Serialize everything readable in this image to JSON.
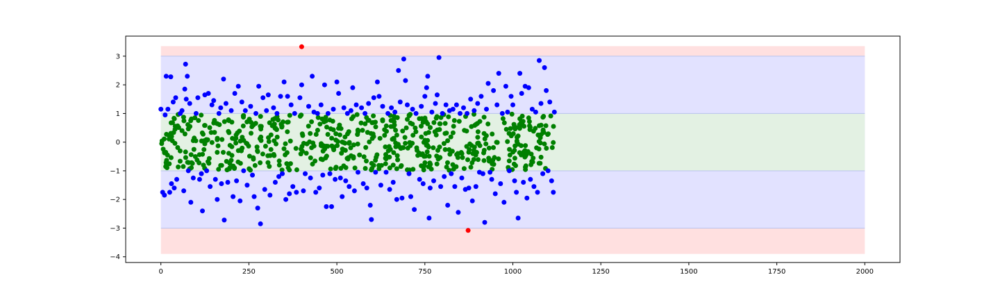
{
  "chart_data": {
    "type": "scatter",
    "title": "",
    "xlabel": "",
    "ylabel": "",
    "xlim": [
      -100,
      2100
    ],
    "ylim": [
      -4.2,
      3.7
    ],
    "x_ticks": [
      0,
      250,
      500,
      750,
      1000,
      1250,
      1500,
      1750,
      2000
    ],
    "y_ticks": [
      3,
      2,
      1,
      0,
      -1,
      -2,
      -3,
      -4
    ],
    "bands": [
      {
        "name": "outer",
        "x_range": [
          0,
          2000
        ],
        "y_range": [
          -3.9,
          3.35
        ],
        "color": "#ffe0e0"
      },
      {
        "name": "middle",
        "x_range": [
          0,
          2000
        ],
        "y_range": [
          -3,
          3
        ],
        "color": "#e2e2ff"
      },
      {
        "name": "inner",
        "x_range": [
          0,
          2000
        ],
        "y_range": [
          -1,
          1
        ],
        "color": "#e3f1e3"
      }
    ],
    "series": [
      {
        "color": "#ff0000",
        "points": [
          [
            400,
            3.33
          ],
          [
            873,
            -3.08
          ]
        ]
      },
      {
        "color": "#0000ff",
        "note_generated": false,
        "points": [
          [
            0,
            1.15
          ],
          [
            5,
            -1.75
          ],
          [
            10,
            -1.85
          ],
          [
            12,
            0.95
          ],
          [
            15,
            2.3
          ],
          [
            20,
            1.15
          ],
          [
            25,
            -1.75
          ],
          [
            28,
            2.28
          ],
          [
            30,
            -1.45
          ],
          [
            35,
            1.4
          ],
          [
            38,
            -1.6
          ],
          [
            42,
            1.55
          ],
          [
            45,
            -1.3
          ],
          [
            55,
            1.0
          ],
          [
            60,
            1.1
          ],
          [
            65,
            -1.7
          ],
          [
            68,
            1.85
          ],
          [
            70,
            2.72
          ],
          [
            72,
            1.5
          ],
          [
            75,
            2.3
          ],
          [
            78,
            -1.0
          ],
          [
            82,
            1.35
          ],
          [
            85,
            -2.1
          ],
          [
            92,
            -1.25
          ],
          [
            100,
            1.0
          ],
          [
            105,
            1.55
          ],
          [
            110,
            -1.3
          ],
          [
            115,
            -1.1
          ],
          [
            118,
            -2.4
          ],
          [
            125,
            1.65
          ],
          [
            130,
            -1.0
          ],
          [
            135,
            1.7
          ],
          [
            140,
            -1.55
          ],
          [
            145,
            1.3
          ],
          [
            150,
            1.45
          ],
          [
            155,
            -1.3
          ],
          [
            160,
            -2.0
          ],
          [
            165,
            1.0
          ],
          [
            170,
            1.2
          ],
          [
            172,
            -1.45
          ],
          [
            178,
            2.2
          ],
          [
            180,
            -2.72
          ],
          [
            185,
            1.35
          ],
          [
            190,
            -1.4
          ],
          [
            200,
            1.1
          ],
          [
            205,
            -1.9
          ],
          [
            210,
            1.7
          ],
          [
            215,
            -1.35
          ],
          [
            220,
            1.95
          ],
          [
            225,
            -2.05
          ],
          [
            230,
            1.4
          ],
          [
            235,
            -1.0
          ],
          [
            240,
            1.1
          ],
          [
            245,
            -1.5
          ],
          [
            255,
            1.25
          ],
          [
            260,
            -1.15
          ],
          [
            265,
            -1.9
          ],
          [
            270,
            1.0
          ],
          [
            275,
            -2.3
          ],
          [
            278,
            1.95
          ],
          [
            283,
            -2.85
          ],
          [
            290,
            1.55
          ],
          [
            295,
            -1.65
          ],
          [
            300,
            1.1
          ],
          [
            305,
            1.65
          ],
          [
            310,
            -1.85
          ],
          [
            320,
            1.2
          ],
          [
            325,
            -1.4
          ],
          [
            330,
            1.0
          ],
          [
            335,
            -1.2
          ],
          [
            340,
            1.6
          ],
          [
            345,
            -1.1
          ],
          [
            350,
            2.1
          ],
          [
            355,
            -2.0
          ],
          [
            360,
            1.6
          ],
          [
            365,
            -1.8
          ],
          [
            370,
            1.3
          ],
          [
            375,
            -1.55
          ],
          [
            380,
            1.0
          ],
          [
            385,
            -1.75
          ],
          [
            395,
            1.55
          ],
          [
            400,
            2.0
          ],
          [
            405,
            -1.7
          ],
          [
            410,
            -1.1
          ],
          [
            420,
            1.25
          ],
          [
            425,
            -1.25
          ],
          [
            430,
            2.3
          ],
          [
            435,
            1.05
          ],
          [
            440,
            -1.75
          ],
          [
            445,
            1.0
          ],
          [
            450,
            -1.6
          ],
          [
            455,
            1.3
          ],
          [
            460,
            -1.15
          ],
          [
            465,
            2.0
          ],
          [
            470,
            -2.25
          ],
          [
            475,
            1.0
          ],
          [
            480,
            -1.1
          ],
          [
            485,
            -2.25
          ],
          [
            490,
            1.15
          ],
          [
            495,
            -1.3
          ],
          [
            500,
            2.1
          ],
          [
            505,
            1.7
          ],
          [
            510,
            -1.25
          ],
          [
            515,
            -1.9
          ],
          [
            520,
            1.2
          ],
          [
            525,
            -1.35
          ],
          [
            530,
            1.0
          ],
          [
            535,
            -1.55
          ],
          [
            540,
            1.1
          ],
          [
            545,
            1.9
          ],
          [
            550,
            -1.7
          ],
          [
            555,
            1.3
          ],
          [
            560,
            -1.05
          ],
          [
            570,
            1.2
          ],
          [
            575,
            -1.45
          ],
          [
            580,
            1.0
          ],
          [
            585,
            -1.6
          ],
          [
            590,
            1.35
          ],
          [
            595,
            -2.2
          ],
          [
            598,
            -2.7
          ],
          [
            605,
            1.55
          ],
          [
            610,
            -1.05
          ],
          [
            615,
            2.1
          ],
          [
            620,
            1.6
          ],
          [
            625,
            -1.5
          ],
          [
            630,
            1.25
          ],
          [
            640,
            -1.05
          ],
          [
            645,
            1.0
          ],
          [
            650,
            -1.65
          ],
          [
            655,
            1.2
          ],
          [
            660,
            -1.4
          ],
          [
            665,
            1.05
          ],
          [
            670,
            -2.0
          ],
          [
            675,
            2.5
          ],
          [
            680,
            1.4
          ],
          [
            685,
            -1.95
          ],
          [
            690,
            2.9
          ],
          [
            695,
            2.15
          ],
          [
            700,
            1.3
          ],
          [
            705,
            -1.1
          ],
          [
            710,
            -1.9
          ],
          [
            715,
            1.15
          ],
          [
            720,
            -2.35
          ],
          [
            725,
            1.0
          ],
          [
            735,
            -1.3
          ],
          [
            740,
            1.25
          ],
          [
            745,
            -1.45
          ],
          [
            750,
            1.6
          ],
          [
            755,
            1.9
          ],
          [
            758,
            2.3
          ],
          [
            762,
            -2.65
          ],
          [
            765,
            -1.6
          ],
          [
            770,
            1.05
          ],
          [
            775,
            -1.35
          ],
          [
            780,
            1.35
          ],
          [
            785,
            1.65
          ],
          [
            790,
            2.95
          ],
          [
            795,
            -1.55
          ],
          [
            800,
            1.0
          ],
          [
            805,
            -1.2
          ],
          [
            810,
            1.3
          ],
          [
            815,
            -2.2
          ],
          [
            820,
            1.1
          ],
          [
            825,
            -1.1
          ],
          [
            830,
            1.15
          ],
          [
            835,
            -1.55
          ],
          [
            840,
            1.3
          ],
          [
            845,
            -2.45
          ],
          [
            850,
            1.0
          ],
          [
            855,
            -1.25
          ],
          [
            860,
            1.2
          ],
          [
            865,
            -1.65
          ],
          [
            870,
            1.0
          ],
          [
            875,
            -1.6
          ],
          [
            880,
            1.5
          ],
          [
            885,
            -2.05
          ],
          [
            890,
            1.1
          ],
          [
            895,
            -1.55
          ],
          [
            900,
            1.35
          ],
          [
            905,
            -1.05
          ],
          [
            910,
            1.6
          ],
          [
            915,
            -1.1
          ],
          [
            920,
            -2.8
          ],
          [
            925,
            1.15
          ],
          [
            930,
            2.05
          ],
          [
            935,
            -1.05
          ],
          [
            940,
            -1.3
          ],
          [
            945,
            1.8
          ],
          [
            950,
            -1.8
          ],
          [
            955,
            1.3
          ],
          [
            960,
            2.4
          ],
          [
            965,
            -1.45
          ],
          [
            970,
            1.0
          ],
          [
            975,
            -2.1
          ],
          [
            980,
            1.95
          ],
          [
            985,
            1.05
          ],
          [
            990,
            -1.0
          ],
          [
            995,
            1.6
          ],
          [
            1000,
            1.3
          ],
          [
            1005,
            -1.35
          ],
          [
            1010,
            -1.75
          ],
          [
            1015,
            -2.65
          ],
          [
            1020,
            2.4
          ],
          [
            1025,
            1.7
          ],
          [
            1030,
            -1.4
          ],
          [
            1035,
            1.95
          ],
          [
            1040,
            -1.95
          ],
          [
            1045,
            1.9
          ],
          [
            1050,
            -1.3
          ],
          [
            1055,
            1.15
          ],
          [
            1060,
            -1.55
          ],
          [
            1065,
            1.05
          ],
          [
            1070,
            -1.75
          ],
          [
            1075,
            2.85
          ],
          [
            1080,
            1.35
          ],
          [
            1085,
            -1.1
          ],
          [
            1090,
            2.6
          ],
          [
            1095,
            1.8
          ],
          [
            1100,
            -1.0
          ],
          [
            1105,
            1.4
          ],
          [
            1110,
            -1.35
          ],
          [
            1115,
            -1.75
          ],
          [
            1118,
            1.05
          ]
        ]
      },
      {
        "color": "#008000",
        "density": "approx. 640 points uniformly spread over x 0–1120 and y between -1 and 1"
      }
    ]
  }
}
